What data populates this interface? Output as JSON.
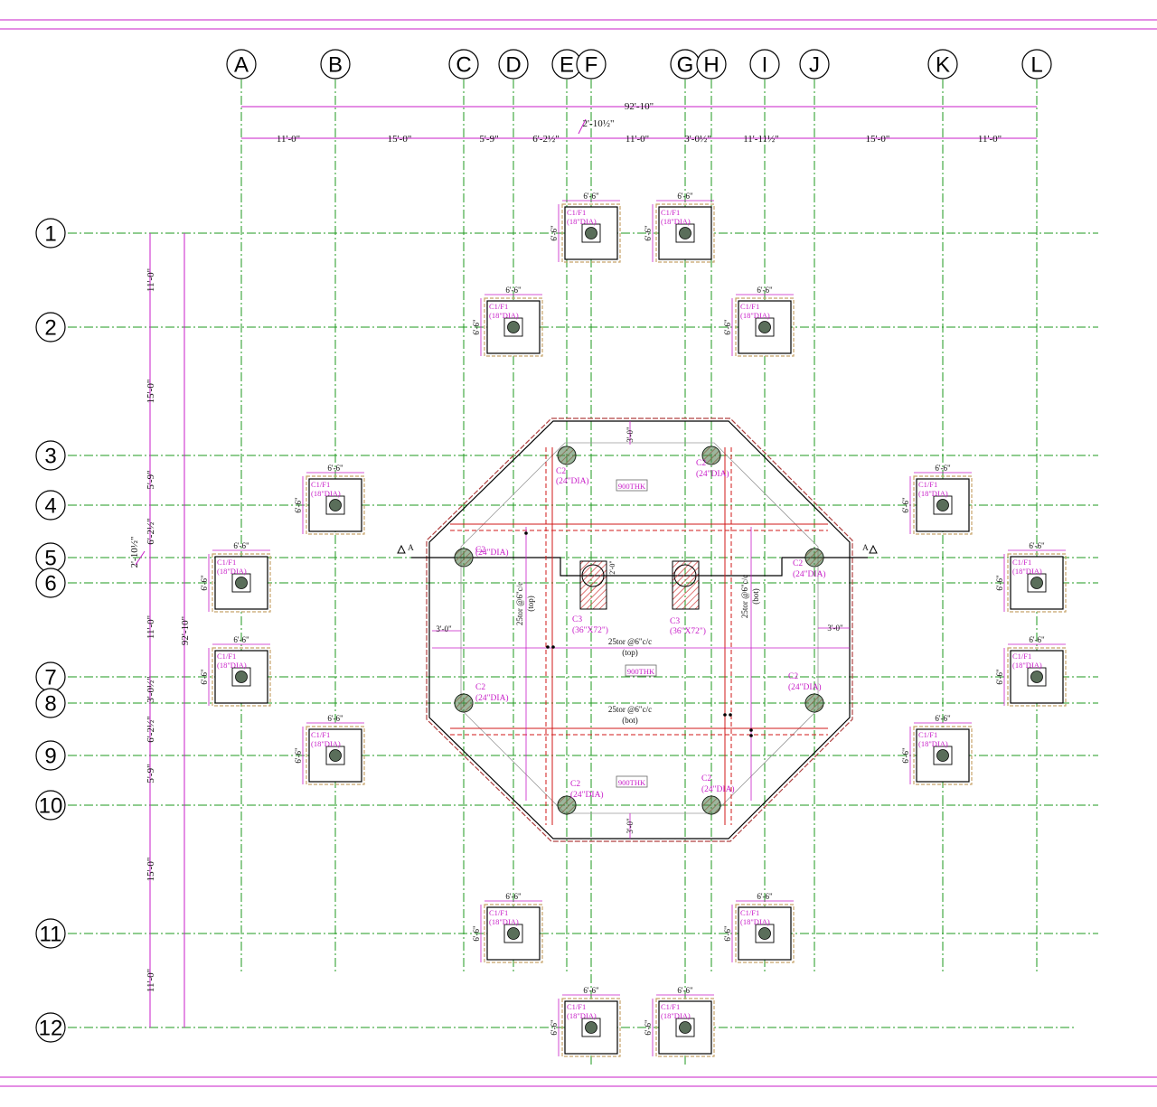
{
  "grid": {
    "columns": [
      "A",
      "B",
      "C",
      "D",
      "E",
      "F",
      "G",
      "H",
      "I",
      "J",
      "K",
      "L"
    ],
    "rows": [
      "1",
      "2",
      "3",
      "4",
      "5",
      "6",
      "7",
      "8",
      "9",
      "10",
      "11",
      "12"
    ]
  },
  "dimensions": {
    "overall_horizontal": "92'-10\"",
    "overall_vertical": "92'-10\"",
    "horizontal_segments": [
      "11'-0\"",
      "15'-0\"",
      "5'-9\"",
      "6'-2½\"",
      "2'-10½\"",
      "11'-0\"",
      "3'-0½\"",
      "11'-11½\"",
      "15'-0\"",
      "11'-0\""
    ],
    "vertical_segments": [
      "11'-0\"",
      "15'-0\"",
      "5'-9\"",
      "6'-2½\"",
      "2'-10½\"",
      "11'-0\"",
      "3'-0½\"",
      "6'-2½\"",
      "5'-9\"",
      "15'-0\"",
      "11'-0\""
    ]
  },
  "footing": {
    "size_label": "6'-6\"",
    "mark": "C1/F1",
    "dia": "(18\"DIA)"
  },
  "raft": {
    "column_mark": "C2",
    "column_dia": "(24\"DIA)",
    "core_mark": "C3",
    "core_size": "(36\"X72\")",
    "thickness": "900THK",
    "offset": "3'-0\"",
    "offset_small": "2'-0\"",
    "bar_top": "25tor @6\"c/c",
    "bar_top_note": "(top)",
    "bar_bot": "25tor @6\"c/c",
    "bar_bot_note": "(bot)",
    "section_mark": "A"
  },
  "colors": {
    "grid": "#1f9a1f",
    "dimension": "#c81ec8",
    "hatch": "#d23b3b",
    "rebar": "#d01818",
    "footing_edge": "#c8a36a"
  }
}
